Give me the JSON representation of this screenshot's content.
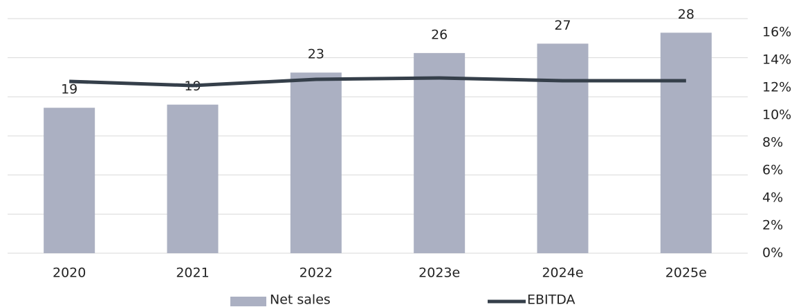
{
  "chart_data": {
    "type": "bar_line",
    "categories": [
      "2020",
      "2021",
      "2022",
      "2023e",
      "2024e",
      "2025e"
    ],
    "series": [
      {
        "name": "Net sales",
        "type": "bar",
        "color": "#abb0c2",
        "values": [
          18.6,
          19,
          23.1,
          25.6,
          26.8,
          28.2
        ],
        "value_labels": [
          "19",
          "19",
          "23",
          "26",
          "27",
          "28"
        ]
      },
      {
        "name": "EBITDA",
        "type": "line",
        "axis": "y2",
        "color": "#353f4a",
        "values": [
          12.45,
          12.15,
          12.6,
          12.7,
          12.5,
          12.5
        ]
      }
    ],
    "ylim": [
      0,
      30
    ],
    "yticks": [
      0,
      5,
      10,
      15,
      20,
      25,
      30
    ],
    "y2lim": [
      0,
      17
    ],
    "y2ticks": [
      {
        "value": 0,
        "label": "0%"
      },
      {
        "value": 2,
        "label": "2%"
      },
      {
        "value": 4,
        "label": "4%"
      },
      {
        "value": 6,
        "label": "6%"
      },
      {
        "value": 8,
        "label": "8%"
      },
      {
        "value": 10,
        "label": "10%"
      },
      {
        "value": 12,
        "label": "12%"
      },
      {
        "value": 14,
        "label": "14%"
      },
      {
        "value": 16,
        "label": "16%"
      }
    ],
    "grid": true,
    "legend": "bottom"
  }
}
